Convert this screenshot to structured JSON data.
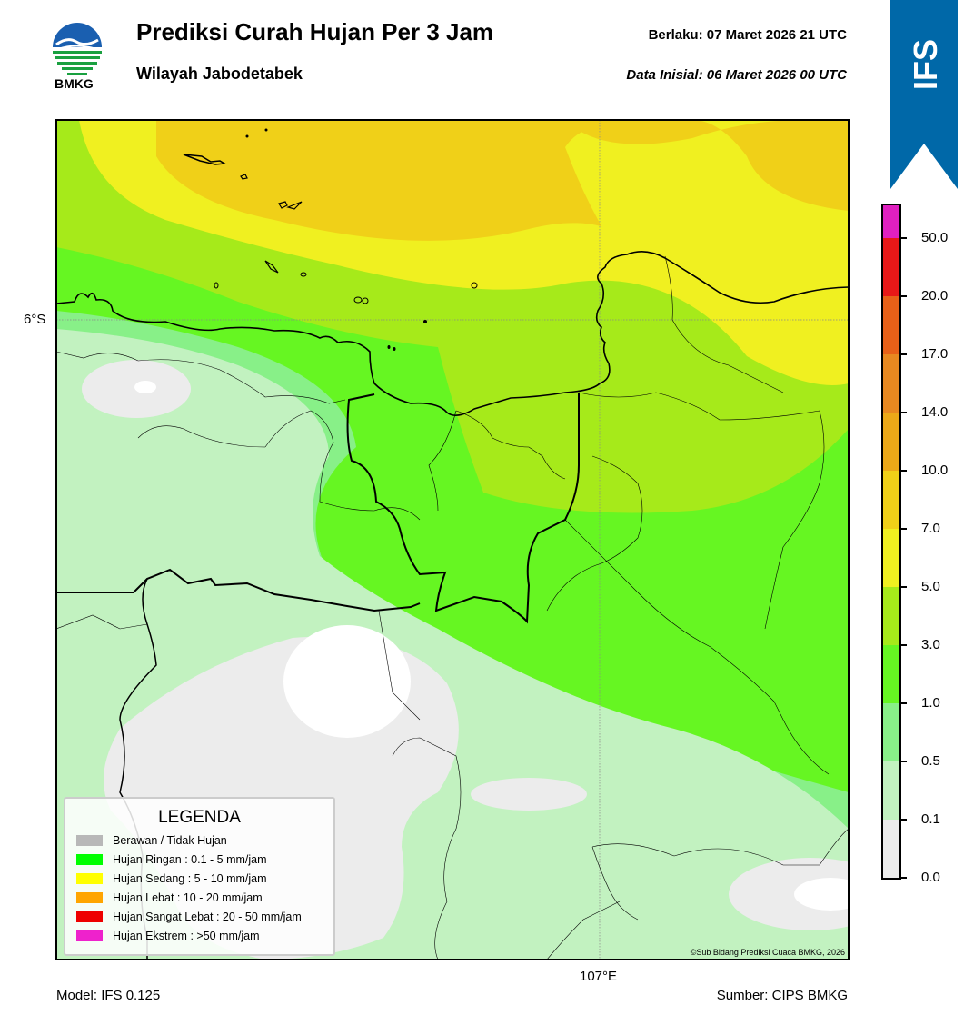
{
  "header": {
    "title": "Prediksi Curah Hujan Per 3 Jam",
    "region": "Wilayah Jabodetabek",
    "valid_label": "Berlaku:  07 Maret 2026 21 UTC",
    "init_label": "Data Inisial:  06 Maret 2026 00 UTC"
  },
  "logo": {
    "text": "BMKG",
    "icon": "bmkg-logo-icon"
  },
  "badge": {
    "text": "IFS",
    "color": "#0068a8"
  },
  "axes": {
    "lat_label": "6°S",
    "lon_label": "107°E"
  },
  "footer": {
    "model": "Model: IFS 0.125",
    "source": "Sumber: CIPS BMKG"
  },
  "copyright": "©Sub Bidang Prediksi Cuaca BMKG, 2026",
  "legend": {
    "title": "LEGENDA",
    "items": [
      {
        "label": "Berawan / Tidak Hujan",
        "color": "#b8b8b8"
      },
      {
        "label": "Hujan Ringan : 0.1 - 5 mm/jam",
        "color": "#00ff00"
      },
      {
        "label": "Hujan Sedang : 5 - 10 mm/jam",
        "color": "#ffff00"
      },
      {
        "label": "Hujan Lebat : 10 - 20 mm/jam",
        "color": "#ffa500"
      },
      {
        "label": "Hujan Sangat Lebat : 20 - 50 mm/jam",
        "color": "#ee0000"
      },
      {
        "label": "Hujan Ekstrem : >50 mm/jam",
        "color": "#ee22cc"
      }
    ]
  },
  "colorbar": {
    "ticks": [
      "0.0",
      "0.1",
      "0.5",
      "1.0",
      "3.0",
      "5.0",
      "7.0",
      "10.0",
      "14.0",
      "17.0",
      "20.0",
      "50.0"
    ],
    "colors": [
      "#ececec",
      "#c2f2c0",
      "#88f088",
      "#66f622",
      "#a6ea1a",
      "#f0f020",
      "#f0d018",
      "#eca818",
      "#e88820",
      "#e86018",
      "#e81818",
      "#e020c0"
    ]
  },
  "map_colors": {
    "very_light": "#ececec",
    "light_green": "#c2f2c0",
    "mid_green": "#88f088",
    "green": "#66f622",
    "yellow_green": "#a6ea1a",
    "yellow": "#f0f020",
    "gold": "#f0d018"
  }
}
